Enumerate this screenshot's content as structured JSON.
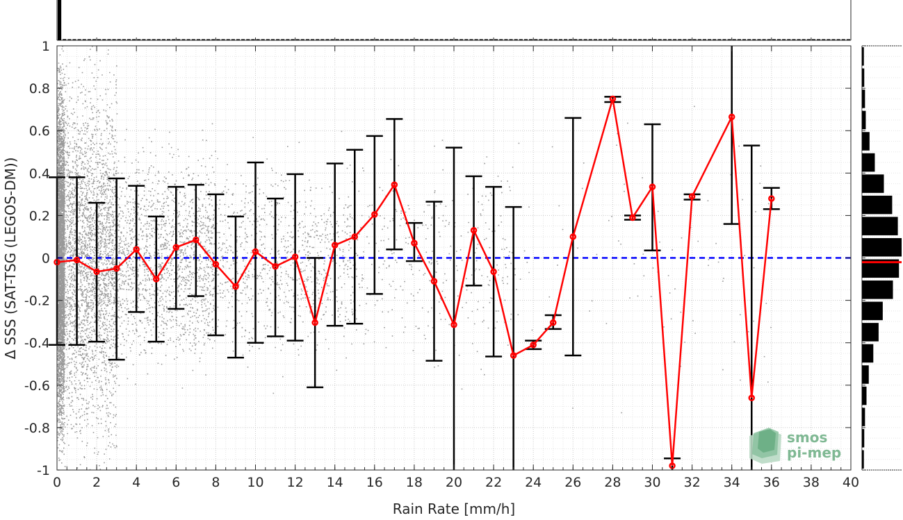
{
  "chart_data": {
    "type": "scatter",
    "xlabel": "Rain Rate [mm/h]",
    "ylabel": "Δ SSS (SAT-TSG (LEGOS-DM))",
    "xlim": [
      0,
      40
    ],
    "ylim": [
      -1,
      1
    ],
    "x_ticks": [
      "0",
      "2",
      "4",
      "6",
      "8",
      "10",
      "12",
      "14",
      "16",
      "18",
      "20",
      "22",
      "24",
      "26",
      "28",
      "30",
      "32",
      "34",
      "36",
      "38",
      "40"
    ],
    "y_ticks": [
      "1",
      "0.8",
      "0.6",
      "0.4",
      "0.2",
      "0",
      "-0.2",
      "-0.4",
      "-0.6",
      "-0.8",
      "-1"
    ],
    "grid": true,
    "reference_line": {
      "y": 0,
      "style": "dashed",
      "color": "#0000ff"
    },
    "mean_line_color": "#ff0000",
    "errorbar_color": "#000000",
    "scatter_color": "#808080",
    "series": [
      {
        "x": [
          0,
          1,
          2,
          3,
          4,
          5,
          6,
          7,
          8,
          9,
          10,
          11,
          12,
          13,
          14,
          15,
          16,
          17,
          18,
          19,
          20,
          21,
          22,
          23,
          24,
          25,
          26,
          28,
          29,
          30,
          31,
          32,
          34,
          35,
          36
        ],
        "mean": [
          -0.02,
          -0.01,
          -0.065,
          -0.05,
          0.04,
          -0.1,
          0.05,
          0.085,
          -0.03,
          -0.135,
          0.03,
          -0.04,
          0.005,
          -0.305,
          0.06,
          0.1,
          0.205,
          0.345,
          0.07,
          -0.11,
          -0.315,
          0.13,
          -0.065,
          -0.46,
          -0.41,
          -0.305,
          0.1,
          0.75,
          0.19,
          0.335,
          -0.98,
          0.29,
          0.665,
          -0.66,
          0.28
        ],
        "upper": [
          0.38,
          0.38,
          0.26,
          0.375,
          0.34,
          0.195,
          0.335,
          0.345,
          0.3,
          0.195,
          0.45,
          0.28,
          0.395,
          0.0,
          0.445,
          0.51,
          0.575,
          0.655,
          0.165,
          0.265,
          0.52,
          0.385,
          0.335,
          0.24,
          -0.39,
          -0.27,
          0.66,
          0.76,
          0.2,
          0.63,
          -0.945,
          0.3,
          1.0,
          0.53,
          0.33
        ],
        "lower": [
          -0.41,
          -0.41,
          -0.395,
          -0.48,
          -0.255,
          -0.395,
          -0.24,
          -0.18,
          -0.365,
          -0.47,
          -0.4,
          -0.37,
          -0.39,
          -0.61,
          -0.32,
          -0.31,
          -0.17,
          0.04,
          -0.015,
          -0.485,
          -1.0,
          -0.13,
          -0.465,
          -1.0,
          -0.43,
          -0.335,
          -0.46,
          0.735,
          0.18,
          0.035,
          -1.0,
          0.275,
          0.16,
          -1.0,
          0.23
        ]
      }
    ],
    "top_histogram": {
      "bin_width": 0.25,
      "counts": [
        1000,
        28,
        18,
        14,
        10,
        8,
        7,
        5,
        4,
        4,
        4,
        3,
        3,
        3,
        2,
        2,
        2,
        2,
        1,
        1,
        1,
        1,
        1,
        1,
        1,
        1,
        1,
        1,
        1,
        1,
        1,
        1,
        1,
        1,
        1,
        1,
        1,
        1,
        1,
        1,
        1,
        1,
        1,
        1,
        1,
        1,
        1,
        1,
        1,
        1,
        1,
        1,
        1,
        1,
        1,
        1,
        1,
        1,
        1,
        1,
        1,
        1,
        1,
        1,
        1,
        1,
        1,
        1,
        1,
        1,
        1,
        1,
        1,
        1,
        1,
        1,
        1,
        1,
        1,
        1,
        1,
        1,
        1,
        1,
        1,
        1,
        1,
        1,
        1,
        1,
        1,
        1,
        1,
        1,
        1,
        1,
        1,
        1,
        1,
        1,
        1,
        1,
        1,
        1,
        1,
        1,
        1,
        1,
        1,
        1,
        1,
        1,
        1,
        1,
        1,
        1,
        1,
        1,
        1,
        1,
        1,
        1,
        1,
        1,
        1,
        1,
        1,
        1,
        1,
        1,
        1,
        1,
        1,
        1,
        1,
        1,
        1,
        1,
        1,
        1,
        1,
        1,
        1,
        1,
        1,
        1,
        1,
        1,
        1,
        1,
        1,
        1,
        1,
        1,
        1,
        1,
        1,
        1,
        1,
        1
      ]
    },
    "right_histogram": {
      "bin_edges": [
        -1.0,
        -0.9,
        -0.8,
        -0.7,
        -0.6,
        -0.5,
        -0.4,
        -0.3,
        -0.2,
        -0.1,
        0.0,
        0.1,
        0.2,
        0.3,
        0.4,
        0.5,
        0.6,
        0.7,
        0.8,
        0.9,
        1.0
      ],
      "counts": [
        5,
        6,
        8,
        12,
        18,
        30,
        44,
        55,
        82,
        98,
        105,
        95,
        80,
        58,
        34,
        20,
        10,
        8,
        6,
        5
      ],
      "median_line": {
        "value": -0.02,
        "color": "#ff0000"
      }
    },
    "watermark": {
      "line1": "smos",
      "line2": "pi-mep"
    }
  }
}
